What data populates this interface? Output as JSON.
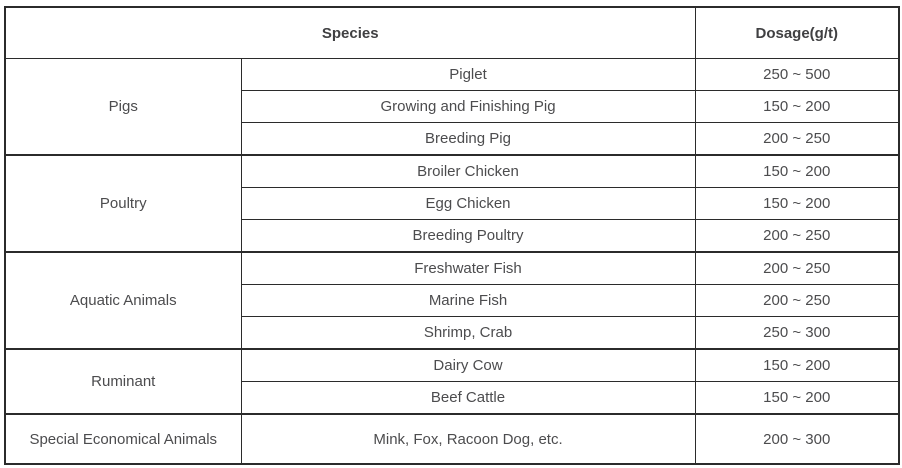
{
  "table": {
    "headers": {
      "species": "Species",
      "dosage": "Dosage(g/t)"
    },
    "groups": [
      {
        "name": "Pigs",
        "rows": [
          {
            "species": "Piglet",
            "dosage": "250 ~ 500"
          },
          {
            "species": "Growing and Finishing Pig",
            "dosage": "150 ~ 200"
          },
          {
            "species": "Breeding Pig",
            "dosage": "200 ~ 250"
          }
        ]
      },
      {
        "name": "Poultry",
        "rows": [
          {
            "species": "Broiler Chicken",
            "dosage": "150 ~ 200"
          },
          {
            "species": "Egg Chicken",
            "dosage": "150 ~ 200"
          },
          {
            "species": "Breeding Poultry",
            "dosage": "200 ~ 250"
          }
        ]
      },
      {
        "name": "Aquatic Animals",
        "rows": [
          {
            "species": "Freshwater Fish",
            "dosage": "200 ~ 250"
          },
          {
            "species": "Marine Fish",
            "dosage": "200 ~ 250"
          },
          {
            "species": "Shrimp, Crab",
            "dosage": "250 ~ 300"
          }
        ]
      },
      {
        "name": "Ruminant",
        "rows": [
          {
            "species": "Dairy Cow",
            "dosage": "150 ~ 200"
          },
          {
            "species": "Beef Cattle",
            "dosage": "150 ~ 200"
          }
        ]
      },
      {
        "name": "Special Economical Animals",
        "rows": [
          {
            "species": "Mink, Fox, Racoon Dog, etc.",
            "dosage": "200 ~ 300"
          }
        ]
      }
    ],
    "colors": {
      "border": "#2b2b2b",
      "header_text": "#404042",
      "body_text": "#4c4c4e",
      "background": "#ffffff"
    }
  }
}
